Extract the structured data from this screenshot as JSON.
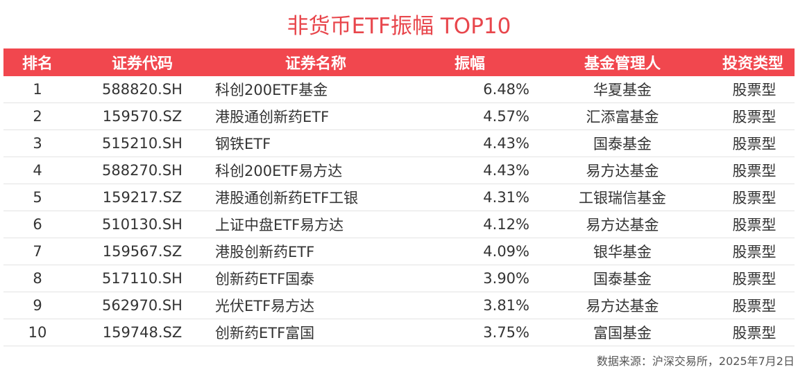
{
  "title": "非货币ETF振幅 TOP10",
  "table": {
    "header": [
      "排名",
      "证券代码",
      "证券名称",
      "振幅",
      "基金管理人",
      "投资类型"
    ],
    "rows": [
      [
        "1",
        "588820.SH",
        "科创200ETF基金",
        "6.48%",
        "华夏基金",
        "股票型"
      ],
      [
        "2",
        "159570.SZ",
        "港股通创新药ETF",
        "4.57%",
        "汇添富基金",
        "股票型"
      ],
      [
        "3",
        "515210.SH",
        "钢铁ETF",
        "4.43%",
        "国泰基金",
        "股票型"
      ],
      [
        "4",
        "588270.SH",
        "科创200ETF易方达",
        "4.43%",
        "易方达基金",
        "股票型"
      ],
      [
        "5",
        "159217.SZ",
        "港股通创新药ETF工银",
        "4.31%",
        "工银瑞信基金",
        "股票型"
      ],
      [
        "6",
        "510130.SH",
        "上证中盘ETF易方达",
        "4.12%",
        "易方达基金",
        "股票型"
      ],
      [
        "7",
        "159567.SZ",
        "港股创新药ETF",
        "4.09%",
        "银华基金",
        "股票型"
      ],
      [
        "8",
        "517110.SH",
        "创新药ETF国泰",
        "3.90%",
        "国泰基金",
        "股票型"
      ],
      [
        "9",
        "562970.SH",
        "光伏ETF易方达",
        "3.81%",
        "易方达基金",
        "股票型"
      ],
      [
        "10",
        "159748.SZ",
        "创新药ETF富国",
        "3.75%",
        "富国基金",
        "股票型"
      ]
    ]
  },
  "source": "数据来源：沪深交易所，2025年7月2日"
}
